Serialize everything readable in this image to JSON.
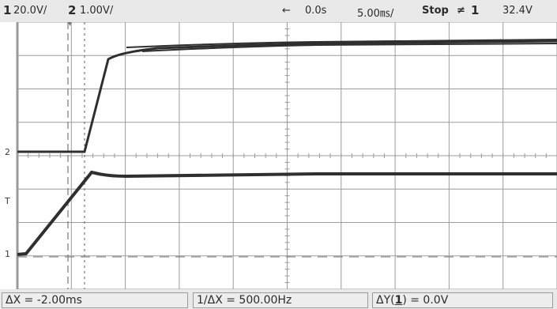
{
  "topbar": {
    "ch1_num": "1",
    "ch1_scale": "20.0V/",
    "ch2_num": "2",
    "ch2_scale": "1.00V/",
    "delay_arrow": "←",
    "delay": "0.0s",
    "timebase": "5.00㎳/",
    "run_state": "Stop",
    "trigger_icon": "trigger-falling-edge-icon",
    "trigger_symbol": "≠",
    "trigger_channel": "1",
    "trigger_level": "32.4V"
  },
  "screen": {
    "background": "#ffffff",
    "grid_color": "#9b9b9b",
    "trace_color": "#2f2f2f",
    "channel_markers": [
      "2",
      "T",
      "1"
    ]
  },
  "measurements": {
    "delta_x": "ΔX = -2.00ms",
    "inv_delta_x": "1/ΔX = 500.00Hz",
    "delta_y_prefix": "ΔY(",
    "delta_y_channel": "1",
    "delta_y_suffix": ") = 0.0V"
  }
}
